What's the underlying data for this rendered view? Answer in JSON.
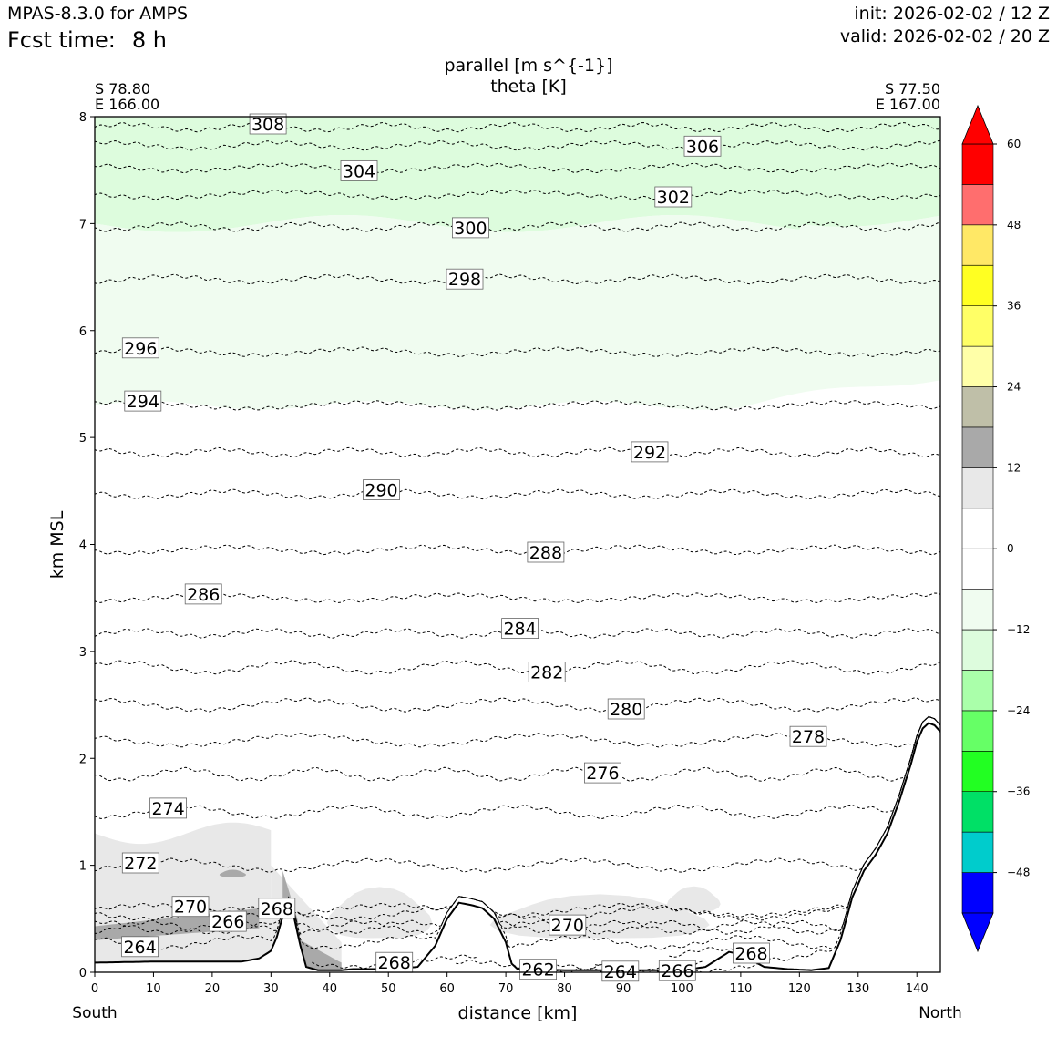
{
  "header": {
    "model": "MPAS-8.3.0 for AMPS",
    "fcst_label": "Fcst time:",
    "fcst_value": "8 h",
    "init": "init: 2026-02-02 / 12 Z",
    "valid": "valid: 2026-02-02 / 20 Z"
  },
  "chart_data": {
    "type": "cross-section",
    "title": "parallel [m s^{-1}]",
    "subtitle": "theta [K]",
    "xlabel": "distance [km]",
    "ylabel": "km MSL",
    "xlim": [
      0,
      144
    ],
    "ylim": [
      0,
      8
    ],
    "x_ticks": [
      0,
      10,
      20,
      30,
      40,
      50,
      60,
      70,
      80,
      90,
      100,
      110,
      120,
      130,
      140
    ],
    "y_ticks": [
      0,
      1,
      2,
      3,
      4,
      5,
      6,
      7,
      8
    ],
    "left_end": {
      "lat": "S 78.80",
      "lon": "E 166.00",
      "name": "South"
    },
    "right_end": {
      "lat": "S 77.50",
      "lon": "E 167.00",
      "name": "North"
    },
    "terrain": {
      "x": [
        0,
        10,
        20,
        25,
        28,
        30,
        31,
        32,
        33,
        34,
        35,
        36,
        38,
        40,
        42,
        44,
        50,
        55,
        58,
        60,
        62,
        64,
        66,
        68,
        70,
        71,
        72,
        80,
        90,
        100,
        104,
        106,
        108,
        110,
        114,
        118,
        122,
        125,
        127,
        129,
        131,
        133,
        135,
        137,
        139,
        140,
        141,
        142,
        143,
        144
      ],
      "height_km": [
        0.09,
        0.1,
        0.1,
        0.1,
        0.13,
        0.2,
        0.33,
        0.52,
        0.64,
        0.5,
        0.25,
        0.05,
        0.02,
        0.02,
        0.02,
        0.03,
        0.03,
        0.05,
        0.25,
        0.5,
        0.65,
        0.63,
        0.6,
        0.5,
        0.28,
        0.08,
        0.03,
        0.02,
        0.02,
        0.02,
        0.05,
        0.12,
        0.19,
        0.17,
        0.05,
        0.03,
        0.02,
        0.04,
        0.3,
        0.7,
        0.95,
        1.1,
        1.3,
        1.6,
        1.95,
        2.15,
        2.28,
        2.33,
        2.31,
        2.25
      ]
    },
    "theta_contours": [
      {
        "label": "308",
        "base_km": 7.9,
        "label_x": 29.5
      },
      {
        "label": "306",
        "base_km": 7.73,
        "label_x": 103.5
      },
      {
        "label": "304",
        "base_km": 7.52,
        "label_x": 45.0
      },
      {
        "label": "302",
        "base_km": 7.27,
        "label_x": 98.5
      },
      {
        "label": "300",
        "base_km": 6.97,
        "label_x": 64.0
      },
      {
        "label": "298",
        "base_km": 6.48,
        "label_x": 63.0
      },
      {
        "label": "296",
        "base_km": 5.8,
        "label_x": 7.8
      },
      {
        "label": "294",
        "base_km": 5.3,
        "label_x": 8.2
      },
      {
        "label": "292",
        "base_km": 4.86,
        "label_x": 94.5
      },
      {
        "label": "290",
        "base_km": 4.47,
        "label_x": 48.8
      },
      {
        "label": "288",
        "base_km": 3.95,
        "label_x": 76.8
      },
      {
        "label": "286",
        "base_km": 3.5,
        "label_x": 18.5
      },
      {
        "label": "284",
        "base_km": 3.17,
        "label_x": 72.4
      },
      {
        "label": "282",
        "base_km": 2.85,
        "label_x": 77.0
      },
      {
        "label": "280",
        "base_km": 2.5,
        "label_x": 90.5
      },
      {
        "label": "278",
        "base_km": 2.17,
        "label_x": 121.5
      },
      {
        "label": "276",
        "base_km": 1.85,
        "label_x": 86.5
      },
      {
        "label": "274",
        "base_km": 1.5,
        "label_x": 12.5
      },
      {
        "label": "272",
        "base_km": 1.0,
        "label_x": 7.8
      },
      {
        "label": "270",
        "base_km": 0.58,
        "label_x": 16.3
      },
      {
        "label": "266",
        "base_km": 0.42,
        "label_x": 22.7
      },
      {
        "label": "264",
        "base_km": 0.28,
        "label_x": 7.7
      },
      {
        "label": "268",
        "base_km": 0.55,
        "label_x": 31.0
      },
      {
        "label": "268",
        "base_km": 0.1,
        "label_x": 51.0
      },
      {
        "label": "270",
        "base_km": 0.42,
        "label_x": 80.5
      },
      {
        "label": "262",
        "base_km": 0.05,
        "label_x": 75.5
      },
      {
        "label": "264",
        "base_km": 0.05,
        "label_x": 89.5
      },
      {
        "label": "266",
        "base_km": 0.05,
        "label_x": 99.2
      },
      {
        "label": "268",
        "base_km": 0.17,
        "label_x": 111.8
      }
    ],
    "shading_regions": [
      {
        "name": "upper",
        "value_range": [
          -18,
          -12
        ],
        "color": "#ddfcdd"
      },
      {
        "name": "middle",
        "value_range": [
          -12,
          -6
        ],
        "color": "#f0fcf0"
      },
      {
        "name": "low-level",
        "value_range": [
          6,
          12
        ],
        "color": "#e8e8e8"
      },
      {
        "name": "low-level-core",
        "value_range": [
          12,
          18
        ],
        "color": "#a9a9a9"
      }
    ],
    "colorbar": {
      "ticks": [
        "60",
        "48",
        "36",
        "24",
        "12",
        "0",
        "−12",
        "−24",
        "−36",
        "−48"
      ],
      "tick_values": [
        60,
        48,
        36,
        24,
        12,
        0,
        -12,
        -24,
        -36,
        -48
      ],
      "bounds": [
        -54,
        -48,
        -42,
        -36,
        -30,
        -24,
        -18,
        -12,
        -6,
        0,
        6,
        12,
        18,
        24,
        30,
        36,
        42,
        48,
        54,
        60
      ],
      "colors": [
        "#0000ff",
        "#00cccc",
        "#00e066",
        "#22ff22",
        "#66ff66",
        "#aaffaa",
        "#ddfcdd",
        "#f0fcf0",
        "#ffffff",
        "#ffffff",
        "#e8e8e8",
        "#a9a9a9",
        "#bfbfa8",
        "#ffffa8",
        "#ffff66",
        "#ffff22",
        "#ffe866",
        "#ff6e6e",
        "#ff0000"
      ],
      "under_color": "#0000ff",
      "over_color": "#ff0000"
    }
  }
}
